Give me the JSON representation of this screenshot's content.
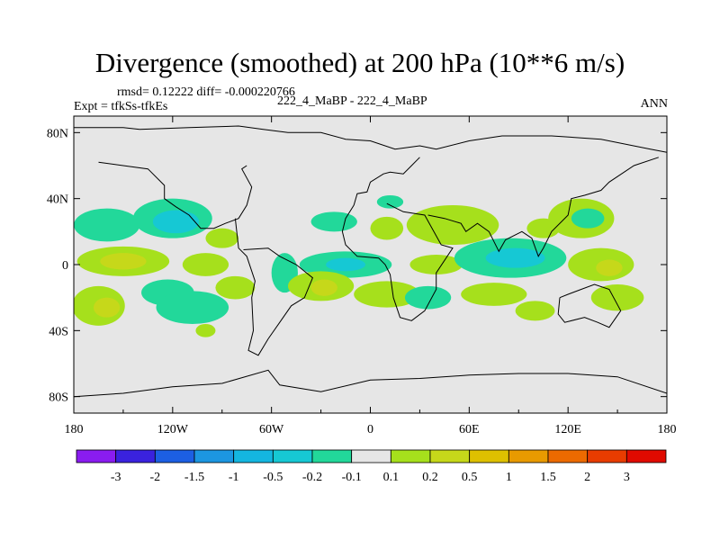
{
  "title": "Divergence (smoothed) at 200 hPa (10**6 m/s)",
  "stats_text": "rmsd= 0.12222 diff= -0.000220766",
  "expt_text": "Expt = tfkSs-tfkEs",
  "case_text": "222_4_MaBP - 222_4_MaBP",
  "period_text": "ANN",
  "chart_data": {
    "type": "contour-map",
    "title": "Divergence (smoothed) at 200 hPa (10**6 m/s)",
    "xlim": [
      -180,
      180
    ],
    "ylim": [
      -90,
      90
    ],
    "x_ticks": [
      -180,
      -120,
      -60,
      0,
      60,
      120,
      180
    ],
    "x_tick_labels": [
      "180",
      "120W",
      "60W",
      "0",
      "60E",
      "120E",
      "180"
    ],
    "y_ticks": [
      80,
      40,
      0,
      -40,
      -80
    ],
    "y_tick_labels": [
      "80N",
      "40N",
      "0",
      "40S",
      "80S"
    ],
    "colorbar": {
      "labels": [
        "-3",
        "-2",
        "-1.5",
        "-1",
        "-0.5",
        "-0.2",
        "-0.1",
        "0.1",
        "0.2",
        "0.5",
        "1",
        "1.5",
        "2",
        "3"
      ],
      "colors": [
        "#8a1cf0",
        "#3a22de",
        "#1c5fe3",
        "#1c96e1",
        "#14b6e0",
        "#16c8d4",
        "#22d89a",
        "#e6e6e6",
        "#a6e01c",
        "#c6d81a",
        "#dec000",
        "#e89a00",
        "#ec6a00",
        "#e83c00",
        "#e00a00"
      ]
    },
    "blobs": [
      {
        "lon": -160,
        "lat": 24,
        "rx": 20,
        "ry": 10,
        "level": "-0.1"
      },
      {
        "lon": -120,
        "lat": 28,
        "rx": 24,
        "ry": 12,
        "level": "-0.1"
      },
      {
        "lon": -118,
        "lat": 26,
        "rx": 14,
        "ry": 7,
        "level": "-0.2"
      },
      {
        "lon": -150,
        "lat": 2,
        "rx": 28,
        "ry": 9,
        "level": "0.1"
      },
      {
        "lon": -150,
        "lat": 2,
        "rx": 14,
        "ry": 5,
        "level": "0.2"
      },
      {
        "lon": -100,
        "lat": 0,
        "rx": 14,
        "ry": 7,
        "level": "0.1"
      },
      {
        "lon": -165,
        "lat": -25,
        "rx": 16,
        "ry": 12,
        "level": "0.1"
      },
      {
        "lon": -160,
        "lat": -26,
        "rx": 8,
        "ry": 6,
        "level": "0.2"
      },
      {
        "lon": -123,
        "lat": -17,
        "rx": 16,
        "ry": 8,
        "level": "-0.1"
      },
      {
        "lon": -108,
        "lat": -26,
        "rx": 22,
        "ry": 10,
        "level": "-0.1"
      },
      {
        "lon": -82,
        "lat": -14,
        "rx": 12,
        "ry": 7,
        "level": "0.1"
      },
      {
        "lon": -90,
        "lat": 16,
        "rx": 10,
        "ry": 6,
        "level": "0.1"
      },
      {
        "lon": -52,
        "lat": -5,
        "rx": 8,
        "ry": 12,
        "level": "-0.1"
      },
      {
        "lon": -15,
        "lat": 0,
        "rx": 28,
        "ry": 8,
        "level": "-0.1"
      },
      {
        "lon": -15,
        "lat": 0,
        "rx": 12,
        "ry": 4,
        "level": "-0.2"
      },
      {
        "lon": -30,
        "lat": -13,
        "rx": 20,
        "ry": 9,
        "level": "0.1"
      },
      {
        "lon": -28,
        "lat": -14,
        "rx": 8,
        "ry": 5,
        "level": "0.2"
      },
      {
        "lon": -22,
        "lat": 26,
        "rx": 14,
        "ry": 6,
        "level": "-0.1"
      },
      {
        "lon": 10,
        "lat": -18,
        "rx": 20,
        "ry": 8,
        "level": "0.1"
      },
      {
        "lon": 50,
        "lat": 24,
        "rx": 28,
        "ry": 12,
        "level": "0.1"
      },
      {
        "lon": 10,
        "lat": 22,
        "rx": 10,
        "ry": 7,
        "level": "0.1"
      },
      {
        "lon": 40,
        "lat": 0,
        "rx": 16,
        "ry": 6,
        "level": "0.1"
      },
      {
        "lon": 35,
        "lat": -20,
        "rx": 14,
        "ry": 7,
        "level": "-0.1"
      },
      {
        "lon": 85,
        "lat": 4,
        "rx": 34,
        "ry": 12,
        "level": "-0.1"
      },
      {
        "lon": 88,
        "lat": 4,
        "rx": 18,
        "ry": 6,
        "level": "-0.2"
      },
      {
        "lon": 75,
        "lat": -18,
        "rx": 20,
        "ry": 7,
        "level": "0.1"
      },
      {
        "lon": 128,
        "lat": 28,
        "rx": 20,
        "ry": 12,
        "level": "0.1"
      },
      {
        "lon": 132,
        "lat": 28,
        "rx": 10,
        "ry": 6,
        "level": "-0.1"
      },
      {
        "lon": 140,
        "lat": 0,
        "rx": 20,
        "ry": 10,
        "level": "0.1"
      },
      {
        "lon": 145,
        "lat": -2,
        "rx": 8,
        "ry": 5,
        "level": "0.2"
      },
      {
        "lon": 150,
        "lat": -20,
        "rx": 16,
        "ry": 8,
        "level": "0.1"
      },
      {
        "lon": 100,
        "lat": -28,
        "rx": 12,
        "ry": 6,
        "level": "0.1"
      },
      {
        "lon": 105,
        "lat": 22,
        "rx": 10,
        "ry": 6,
        "level": "0.1"
      },
      {
        "lon": -100,
        "lat": -40,
        "rx": 6,
        "ry": 4,
        "level": "0.1"
      },
      {
        "lon": 12,
        "lat": 38,
        "rx": 8,
        "ry": 4,
        "level": "-0.1"
      }
    ]
  }
}
